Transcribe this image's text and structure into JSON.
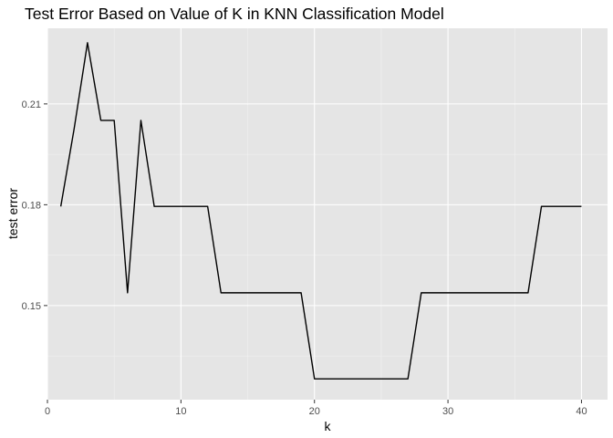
{
  "chart_data": {
    "type": "line",
    "title": "Test Error Based on Value of K in KNN Classification Model",
    "xlabel": "k",
    "ylabel": "test error",
    "xlim": [
      0,
      41.95
    ],
    "ylim": [
      0.122,
      0.2325
    ],
    "x_ticks": [
      0,
      10,
      20,
      30,
      40
    ],
    "x_tick_labels": [
      "0",
      "10",
      "20",
      "30",
      "40"
    ],
    "y_ticks": [
      0.15,
      0.18,
      0.21
    ],
    "y_tick_labels": [
      "0.15",
      "0.18",
      "0.21"
    ],
    "grid": true,
    "legend": "none",
    "panel_color": "#e5e5e5",
    "line_color": "#000000",
    "series": [
      {
        "x": [
          1,
          2,
          3,
          4,
          5,
          6,
          7,
          8,
          9,
          10,
          11,
          12,
          13,
          14,
          15,
          16,
          17,
          18,
          19,
          20,
          21,
          22,
          23,
          24,
          25,
          26,
          27,
          28,
          29,
          30,
          31,
          32,
          33,
          34,
          35,
          36,
          37,
          38,
          39,
          40
        ],
        "values": [
          0.1795,
          0.2026,
          0.2282,
          0.2051,
          0.2051,
          0.1538,
          0.2051,
          0.1795,
          0.1795,
          0.1795,
          0.1795,
          0.1795,
          0.1538,
          0.1538,
          0.1538,
          0.1538,
          0.1538,
          0.1538,
          0.1538,
          0.1282,
          0.1282,
          0.1282,
          0.1282,
          0.1282,
          0.1282,
          0.1282,
          0.1282,
          0.1538,
          0.1538,
          0.1538,
          0.1538,
          0.1538,
          0.1538,
          0.1538,
          0.1538,
          0.1538,
          0.1795,
          0.1795,
          0.1795,
          0.1795
        ]
      }
    ]
  }
}
